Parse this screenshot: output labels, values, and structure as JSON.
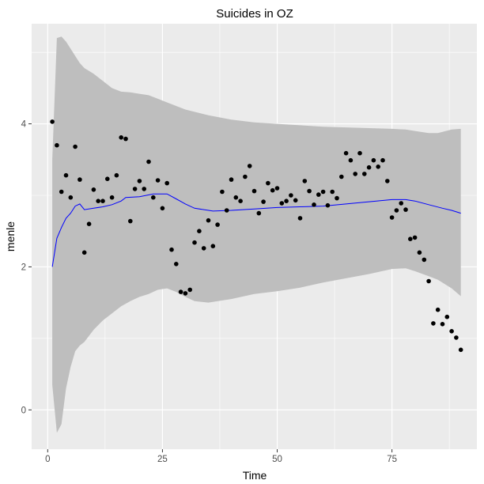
{
  "chart_data": {
    "type": "scatter",
    "title": "Suicides in OZ",
    "xlabel": "Time",
    "ylabel": "menle",
    "xlim": [
      -3.5,
      93.5
    ],
    "ylim": [
      -0.55,
      5.4
    ],
    "x_ticks": [
      0,
      25,
      50,
      75
    ],
    "y_ticks": [
      0,
      2,
      4
    ],
    "grid": true,
    "legend": "none",
    "colors": {
      "panel_background": "#ebebeb",
      "grid_major": "#ffffff",
      "ribbon": "#bebebe",
      "line": "#0000ff",
      "points": "#000000",
      "tick_text": "#4d4d4d"
    },
    "points": [
      [
        1,
        4.03
      ],
      [
        2,
        3.7
      ],
      [
        3,
        3.05
      ],
      [
        4,
        3.28
      ],
      [
        5,
        2.97
      ],
      [
        6,
        3.68
      ],
      [
        7,
        3.22
      ],
      [
        8,
        2.2
      ],
      [
        9,
        2.6
      ],
      [
        10,
        3.08
      ],
      [
        11,
        2.92
      ],
      [
        12,
        2.92
      ],
      [
        13,
        3.23
      ],
      [
        14,
        2.97
      ],
      [
        15,
        3.28
      ],
      [
        16,
        3.81
      ],
      [
        17,
        3.79
      ],
      [
        18,
        2.64
      ],
      [
        19,
        3.09
      ],
      [
        20,
        3.2
      ],
      [
        21,
        3.09
      ],
      [
        22,
        3.47
      ],
      [
        23,
        2.97
      ],
      [
        24,
        3.21
      ],
      [
        25,
        2.82
      ],
      [
        26,
        3.17
      ],
      [
        27,
        2.24
      ],
      [
        28,
        2.04
      ],
      [
        29,
        1.65
      ],
      [
        30,
        1.63
      ],
      [
        31,
        1.68
      ],
      [
        32,
        2.34
      ],
      [
        33,
        2.5
      ],
      [
        34,
        2.26
      ],
      [
        35,
        2.65
      ],
      [
        36,
        2.29
      ],
      [
        37,
        2.59
      ],
      [
        38,
        3.05
      ],
      [
        39,
        2.79
      ],
      [
        40,
        3.22
      ],
      [
        41,
        2.97
      ],
      [
        42,
        2.92
      ],
      [
        43,
        3.26
      ],
      [
        44,
        3.41
      ],
      [
        45,
        3.06
      ],
      [
        46,
        2.75
      ],
      [
        47,
        2.91
      ],
      [
        48,
        3.17
      ],
      [
        49,
        3.07
      ],
      [
        50,
        3.1
      ],
      [
        51,
        2.89
      ],
      [
        52,
        2.92
      ],
      [
        53,
        3.0
      ],
      [
        54,
        2.93
      ],
      [
        55,
        2.68
      ],
      [
        56,
        3.2
      ],
      [
        57,
        3.06
      ],
      [
        58,
        2.87
      ],
      [
        59,
        3.01
      ],
      [
        60,
        3.05
      ],
      [
        61,
        2.86
      ],
      [
        62,
        3.05
      ],
      [
        63,
        2.96
      ],
      [
        64,
        3.26
      ],
      [
        65,
        3.59
      ],
      [
        66,
        3.49
      ],
      [
        67,
        3.3
      ],
      [
        68,
        3.59
      ],
      [
        69,
        3.3
      ],
      [
        70,
        3.39
      ],
      [
        71,
        3.49
      ],
      [
        72,
        3.4
      ],
      [
        73,
        3.49
      ],
      [
        74,
        3.2
      ],
      [
        75,
        2.69
      ],
      [
        76,
        2.79
      ],
      [
        77,
        2.89
      ],
      [
        78,
        2.8
      ],
      [
        79,
        2.39
      ],
      [
        80,
        2.41
      ],
      [
        81,
        2.2
      ],
      [
        82,
        2.1
      ],
      [
        83,
        1.8
      ],
      [
        84,
        1.21
      ],
      [
        85,
        1.4
      ],
      [
        86,
        1.2
      ],
      [
        87,
        1.3
      ],
      [
        88,
        1.1
      ],
      [
        89,
        1.01
      ],
      [
        90,
        0.84
      ]
    ],
    "fitted_line": [
      [
        1,
        2.0
      ],
      [
        2,
        2.4
      ],
      [
        3,
        2.55
      ],
      [
        4,
        2.68
      ],
      [
        5,
        2.75
      ],
      [
        6,
        2.85
      ],
      [
        7,
        2.88
      ],
      [
        8,
        2.8
      ],
      [
        10,
        2.82
      ],
      [
        12,
        2.84
      ],
      [
        14,
        2.87
      ],
      [
        16,
        2.92
      ],
      [
        17,
        2.97
      ],
      [
        20,
        2.98
      ],
      [
        23,
        3.02
      ],
      [
        26,
        3.02
      ],
      [
        28,
        2.95
      ],
      [
        30,
        2.88
      ],
      [
        32,
        2.82
      ],
      [
        36,
        2.78
      ],
      [
        40,
        2.79
      ],
      [
        45,
        2.81
      ],
      [
        50,
        2.83
      ],
      [
        55,
        2.84
      ],
      [
        60,
        2.85
      ],
      [
        65,
        2.88
      ],
      [
        70,
        2.91
      ],
      [
        75,
        2.94
      ],
      [
        78,
        2.94
      ],
      [
        80,
        2.92
      ],
      [
        83,
        2.87
      ],
      [
        86,
        2.82
      ],
      [
        88,
        2.79
      ],
      [
        90,
        2.75
      ]
    ],
    "ribbon_upper": [
      [
        1,
        3.5
      ],
      [
        2,
        5.2
      ],
      [
        3,
        5.22
      ],
      [
        4,
        5.15
      ],
      [
        5,
        5.05
      ],
      [
        6,
        4.95
      ],
      [
        7,
        4.85
      ],
      [
        8,
        4.78
      ],
      [
        10,
        4.7
      ],
      [
        12,
        4.6
      ],
      [
        14,
        4.5
      ],
      [
        16,
        4.45
      ],
      [
        18,
        4.44
      ],
      [
        20,
        4.42
      ],
      [
        22,
        4.4
      ],
      [
        24,
        4.35
      ],
      [
        26,
        4.3
      ],
      [
        28,
        4.25
      ],
      [
        30,
        4.2
      ],
      [
        35,
        4.12
      ],
      [
        40,
        4.06
      ],
      [
        45,
        4.02
      ],
      [
        50,
        4.0
      ],
      [
        55,
        3.98
      ],
      [
        60,
        3.96
      ],
      [
        65,
        3.95
      ],
      [
        70,
        3.94
      ],
      [
        75,
        3.93
      ],
      [
        78,
        3.92
      ],
      [
        80,
        3.9
      ],
      [
        83,
        3.87
      ],
      [
        85,
        3.87
      ],
      [
        88,
        3.92
      ],
      [
        90,
        3.93
      ]
    ],
    "ribbon_lower": [
      [
        1,
        0.35
      ],
      [
        2,
        -0.32
      ],
      [
        3,
        -0.2
      ],
      [
        4,
        0.3
      ],
      [
        5,
        0.6
      ],
      [
        6,
        0.82
      ],
      [
        7,
        0.9
      ],
      [
        8,
        0.95
      ],
      [
        10,
        1.12
      ],
      [
        12,
        1.25
      ],
      [
        14,
        1.35
      ],
      [
        16,
        1.45
      ],
      [
        18,
        1.52
      ],
      [
        20,
        1.58
      ],
      [
        22,
        1.62
      ],
      [
        24,
        1.68
      ],
      [
        26,
        1.7
      ],
      [
        28,
        1.65
      ],
      [
        30,
        1.58
      ],
      [
        32,
        1.52
      ],
      [
        35,
        1.5
      ],
      [
        40,
        1.55
      ],
      [
        45,
        1.62
      ],
      [
        50,
        1.66
      ],
      [
        55,
        1.71
      ],
      [
        60,
        1.78
      ],
      [
        65,
        1.84
      ],
      [
        70,
        1.9
      ],
      [
        75,
        1.97
      ],
      [
        78,
        1.98
      ],
      [
        80,
        1.94
      ],
      [
        83,
        1.87
      ],
      [
        85,
        1.82
      ],
      [
        88,
        1.7
      ],
      [
        90,
        1.59
      ]
    ]
  }
}
